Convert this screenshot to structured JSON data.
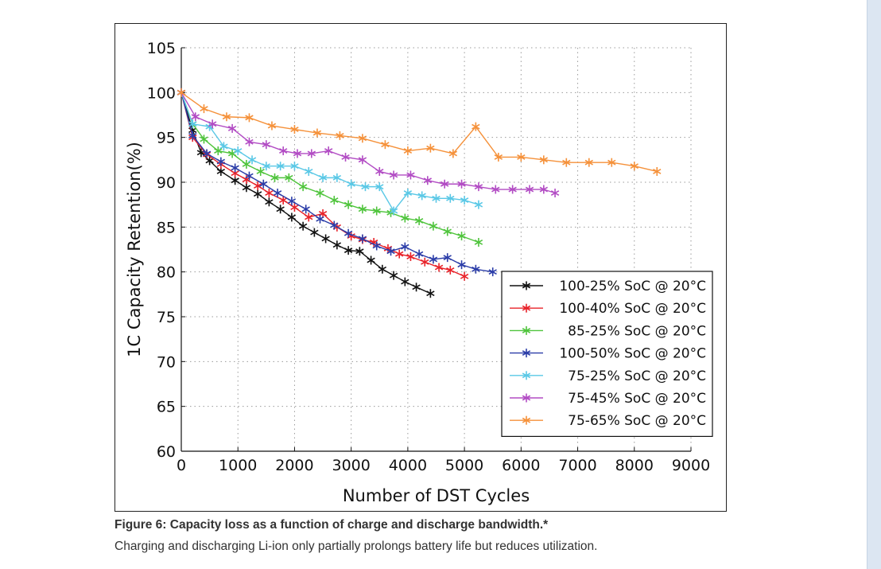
{
  "caption": {
    "title": "Figure 6: Capacity loss as a function of charge and discharge bandwidth.*",
    "body": "Charging and discharging Li-ion only partially prolongs battery life but reduces utilization."
  },
  "chart_data": {
    "type": "line",
    "xlabel": "Number of DST Cycles",
    "ylabel": "1C Capacity Retention(%)",
    "xlim": [
      0,
      9000
    ],
    "ylim": [
      60,
      105
    ],
    "xticks": [
      0,
      1000,
      2000,
      3000,
      4000,
      5000,
      6000,
      7000,
      8000,
      9000
    ],
    "yticks": [
      60,
      65,
      70,
      75,
      80,
      85,
      90,
      95,
      100,
      105
    ],
    "grid": true,
    "legend_position": "lower-right",
    "series": [
      {
        "name": "100-25% SoC @ 20°C",
        "color": "#111111",
        "x": [
          0,
          200,
          350,
          500,
          700,
          950,
          1150,
          1350,
          1550,
          1750,
          1950,
          2150,
          2350,
          2550,
          2750,
          2950,
          3150,
          3350,
          3550,
          3750,
          3950,
          4150,
          4400
        ],
        "values": [
          100,
          95.8,
          93.3,
          92.4,
          91.2,
          90.2,
          89.4,
          88.7,
          87.8,
          87.0,
          86.1,
          85.1,
          84.4,
          83.7,
          83.0,
          82.4,
          82.3,
          81.3,
          80.3,
          79.6,
          78.9,
          78.3,
          77.6
        ]
      },
      {
        "name": "100-40% SoC @ 20°C",
        "color": "#e8232a",
        "x": [
          0,
          200,
          450,
          700,
          950,
          1150,
          1350,
          1550,
          1800,
          2000,
          2250,
          2500,
          2750,
          3000,
          3200,
          3400,
          3650,
          3850,
          4050,
          4300,
          4550,
          4750,
          5000
        ],
        "values": [
          100,
          95.0,
          93.1,
          92.0,
          91.0,
          90.3,
          89.6,
          88.8,
          88.0,
          87.2,
          86.1,
          86.5,
          85.0,
          84.0,
          83.6,
          83.3,
          82.6,
          82.0,
          81.7,
          81.1,
          80.5,
          80.2,
          79.5
        ]
      },
      {
        "name": "85-25% SoC @ 20°C",
        "color": "#4fc43c",
        "x": [
          0,
          200,
          400,
          650,
          900,
          1150,
          1400,
          1650,
          1900,
          2150,
          2450,
          2700,
          2950,
          3200,
          3450,
          3700,
          3950,
          4200,
          4450,
          4700,
          4950,
          5250
        ],
        "values": [
          100,
          96.5,
          94.8,
          93.5,
          93.2,
          92.0,
          91.2,
          90.5,
          90.5,
          89.5,
          88.8,
          88.0,
          87.5,
          87.0,
          86.8,
          86.6,
          86.0,
          85.7,
          85.1,
          84.5,
          84.0,
          83.3
        ]
      },
      {
        "name": "100-50% SoC @ 20°C",
        "color": "#2b3da8",
        "x": [
          0,
          200,
          450,
          700,
          950,
          1200,
          1450,
          1700,
          1950,
          2200,
          2450,
          2700,
          2950,
          3200,
          3450,
          3700,
          3950,
          4200,
          4450,
          4700,
          4950,
          5200,
          5500
        ],
        "values": [
          100,
          95.2,
          93.2,
          92.3,
          91.6,
          90.7,
          89.8,
          88.8,
          87.9,
          87.0,
          85.9,
          85.2,
          84.3,
          83.7,
          82.9,
          82.3,
          82.8,
          82.0,
          81.4,
          81.6,
          80.8,
          80.3,
          80.0
        ]
      },
      {
        "name": "75-25% SoC @ 20°C",
        "color": "#5ac8e6",
        "x": [
          0,
          200,
          500,
          750,
          1000,
          1250,
          1500,
          1750,
          2000,
          2250,
          2500,
          2750,
          3000,
          3250,
          3500,
          3750,
          4000,
          4250,
          4500,
          4750,
          5000,
          5250
        ],
        "values": [
          100,
          96.5,
          96.2,
          94.0,
          93.5,
          92.5,
          91.8,
          91.8,
          91.8,
          91.2,
          90.5,
          90.5,
          89.8,
          89.5,
          89.5,
          86.8,
          88.8,
          88.5,
          88.2,
          88.2,
          88.0,
          87.5
        ]
      },
      {
        "name": "75-45% SoC @ 20°C",
        "color": "#b24cc4",
        "x": [
          0,
          250,
          550,
          900,
          1200,
          1500,
          1800,
          2050,
          2300,
          2600,
          2900,
          3200,
          3500,
          3750,
          4050,
          4350,
          4650,
          4950,
          5250,
          5550,
          5850,
          6150,
          6400,
          6600
        ],
        "values": [
          100,
          97.3,
          96.5,
          96.0,
          94.5,
          94.2,
          93.5,
          93.2,
          93.2,
          93.5,
          92.8,
          92.5,
          91.2,
          90.8,
          90.8,
          90.2,
          89.8,
          89.8,
          89.5,
          89.2,
          89.2,
          89.2,
          89.2,
          88.8
        ]
      },
      {
        "name": "75-65% SoC @ 20°C",
        "color": "#f5913a",
        "x": [
          0,
          400,
          800,
          1200,
          1600,
          2000,
          2400,
          2800,
          3200,
          3600,
          4000,
          4400,
          4800,
          5200,
          5600,
          6000,
          6400,
          6800,
          7200,
          7600,
          8000,
          8400
        ],
        "values": [
          100,
          98.2,
          97.3,
          97.2,
          96.3,
          95.9,
          95.5,
          95.2,
          94.9,
          94.2,
          93.5,
          93.8,
          93.2,
          96.2,
          92.8,
          92.8,
          92.5,
          92.2,
          92.2,
          92.2,
          91.8,
          91.2
        ]
      }
    ]
  }
}
